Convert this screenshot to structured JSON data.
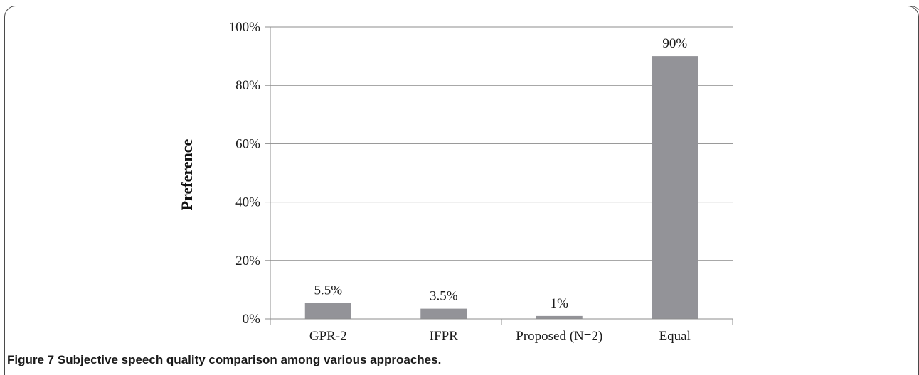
{
  "figure": {
    "label": "Figure 7",
    "caption": "Subjective speech quality comparison among various approaches."
  },
  "chart_data": {
    "type": "bar",
    "categories": [
      "GPR-2",
      "IFPR",
      "Proposed (N=2)",
      "Equal"
    ],
    "values": [
      5.5,
      3.5,
      1,
      90
    ],
    "data_labels": [
      "5.5%",
      "3.5%",
      "1%",
      "90%"
    ],
    "title": "",
    "xlabel": "",
    "ylabel": "Preference",
    "ylim": [
      0,
      100
    ],
    "yticks": [
      0,
      20,
      40,
      60,
      80,
      100
    ],
    "ytick_labels": [
      "0%",
      "20%",
      "40%",
      "60%",
      "80%",
      "100%"
    ],
    "grid": "horizontal",
    "bar_color": "#939398",
    "grid_color": "#8c8c8c"
  }
}
